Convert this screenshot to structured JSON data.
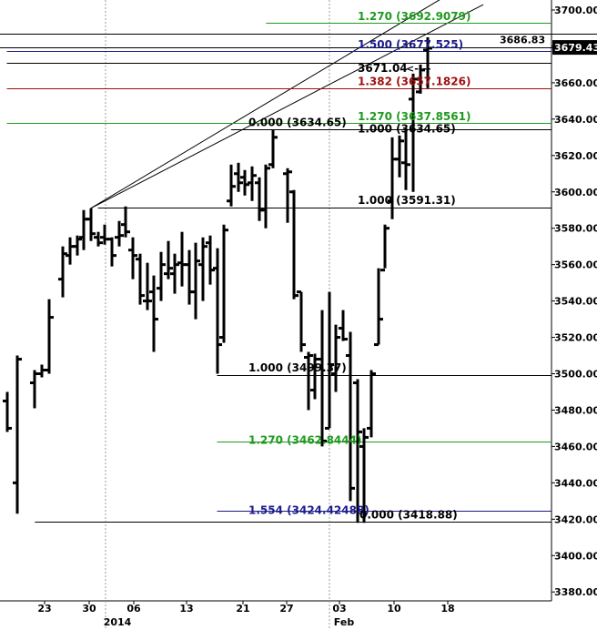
{
  "chart_data": {
    "type": "bar",
    "style": "ohlc",
    "grid": "vertical weekly lines",
    "x_axis": {
      "tick_labels": [
        "23",
        "30",
        "06",
        "13",
        "21",
        "27",
        "03",
        "10",
        "18"
      ],
      "period_labels": [
        "2014",
        "Feb"
      ]
    },
    "y_axis": {
      "position": "right",
      "ylim": [
        3370,
        3715
      ],
      "tick_values": [
        3380,
        3400,
        3420,
        3440,
        3460,
        3480,
        3500,
        3520,
        3540,
        3560,
        3580,
        3600,
        3620,
        3640,
        3660,
        3680,
        3700
      ],
      "tick_labels": [
        "3380.00",
        "3400.00",
        "3420.00",
        "3440.00",
        "3460.00",
        "3480.00",
        "3500.00",
        "3520.00",
        "3540.00",
        "3560.00",
        "3580.00",
        "3600.00",
        "3620.00",
        "3640.00",
        "3660.00",
        "3680.00",
        "3700.00"
      ],
      "last_price_tag": "3679.43",
      "channel_tag": "3686.83"
    },
    "bars": [
      {
        "x": 0,
        "o": 3485,
        "h": 3490,
        "l": 3468,
        "c": 3470
      },
      {
        "x": 1.5,
        "o": 3440,
        "h": 3510,
        "l": 3423,
        "c": 3508
      },
      {
        "x": 4,
        "o": 3495,
        "h": 3502,
        "l": 3481,
        "c": 3500
      },
      {
        "x": 5,
        "o": 3500,
        "h": 3505,
        "l": 3498,
        "c": 3502
      },
      {
        "x": 6,
        "o": 3502,
        "h": 3541,
        "l": 3500,
        "c": 3531
      },
      {
        "x": 8,
        "o": 3552,
        "h": 3570,
        "l": 3542,
        "c": 3566
      },
      {
        "x": 9,
        "o": 3565,
        "h": 3575,
        "l": 3560,
        "c": 3570
      },
      {
        "x": 10,
        "o": 3570,
        "h": 3576,
        "l": 3565,
        "c": 3574
      },
      {
        "x": 11,
        "o": 3575,
        "h": 3590,
        "l": 3568,
        "c": 3585
      },
      {
        "x": 12,
        "o": 3585,
        "h": 3591,
        "l": 3573,
        "c": 3577
      },
      {
        "x": 13,
        "o": 3575,
        "h": 3578,
        "l": 3570,
        "c": 3572
      },
      {
        "x": 14,
        "o": 3575,
        "h": 3582,
        "l": 3571,
        "c": 3574
      },
      {
        "x": 15,
        "o": 3574,
        "h": 3575,
        "l": 3559,
        "c": 3565
      },
      {
        "x": 16,
        "o": 3575,
        "h": 3584,
        "l": 3570,
        "c": 3576
      },
      {
        "x": 17,
        "o": 3582,
        "h": 3592,
        "l": 3575,
        "c": 3578
      },
      {
        "x": 18,
        "o": 3568,
        "h": 3575,
        "l": 3552,
        "c": 3565
      },
      {
        "x": 19,
        "o": 3563,
        "h": 3566,
        "l": 3538,
        "c": 3543
      },
      {
        "x": 20,
        "o": 3540,
        "h": 3561,
        "l": 3535,
        "c": 3540
      },
      {
        "x": 21,
        "o": 3545,
        "h": 3554,
        "l": 3512,
        "c": 3530
      },
      {
        "x": 22,
        "o": 3547,
        "h": 3567,
        "l": 3540,
        "c": 3560
      },
      {
        "x": 23,
        "o": 3555,
        "h": 3573,
        "l": 3552,
        "c": 3558
      },
      {
        "x": 24,
        "o": 3555,
        "h": 3566,
        "l": 3544,
        "c": 3560
      },
      {
        "x": 25,
        "o": 3561,
        "h": 3578,
        "l": 3548,
        "c": 3560
      },
      {
        "x": 26,
        "o": 3560,
        "h": 3568,
        "l": 3538,
        "c": 3545
      },
      {
        "x": 27,
        "o": 3545,
        "h": 3572,
        "l": 3530,
        "c": 3562
      },
      {
        "x": 28,
        "o": 3560,
        "h": 3575,
        "l": 3540,
        "c": 3570
      },
      {
        "x": 29,
        "o": 3572,
        "h": 3576,
        "l": 3549,
        "c": 3557
      },
      {
        "x": 30,
        "o": 3558,
        "h": 3569,
        "l": 3500,
        "c": 3516
      },
      {
        "x": 31,
        "o": 3520,
        "h": 3582,
        "l": 3517,
        "c": 3579
      },
      {
        "x": 32,
        "o": 3595,
        "h": 3615,
        "l": 3592,
        "c": 3603
      },
      {
        "x": 33,
        "o": 3610,
        "h": 3616,
        "l": 3600,
        "c": 3605
      },
      {
        "x": 34,
        "o": 3608,
        "h": 3612,
        "l": 3598,
        "c": 3604
      },
      {
        "x": 35,
        "o": 3605,
        "h": 3614,
        "l": 3595,
        "c": 3609
      },
      {
        "x": 36,
        "o": 3605,
        "h": 3608,
        "l": 3584,
        "c": 3590
      },
      {
        "x": 37,
        "o": 3590,
        "h": 3615,
        "l": 3580,
        "c": 3613
      },
      {
        "x": 38,
        "o": 3615,
        "h": 3634,
        "l": 3613,
        "c": 3630
      },
      {
        "x": 40,
        "o": 3610,
        "h": 3613,
        "l": 3583,
        "c": 3611
      },
      {
        "x": 41,
        "o": 3600,
        "h": 3601,
        "l": 3541,
        "c": 3543
      },
      {
        "x": 42,
        "o": 3545,
        "h": 3545,
        "l": 3512,
        "c": 3516
      },
      {
        "x": 43,
        "o": 3509,
        "h": 3512,
        "l": 3480,
        "c": 3510
      },
      {
        "x": 44,
        "o": 3491,
        "h": 3511,
        "l": 3486,
        "c": 3508
      },
      {
        "x": 45,
        "o": 3508,
        "h": 3535,
        "l": 3460,
        "c": 3463
      },
      {
        "x": 46,
        "o": 3470,
        "h": 3545,
        "l": 3470,
        "c": 3505
      },
      {
        "x": 47,
        "o": 3500,
        "h": 3527,
        "l": 3490,
        "c": 3520
      },
      {
        "x": 48,
        "o": 3525,
        "h": 3535,
        "l": 3518,
        "c": 3519
      },
      {
        "x": 49,
        "o": 3510,
        "h": 3523,
        "l": 3430,
        "c": 3437
      },
      {
        "x": 50,
        "o": 3495,
        "h": 3497,
        "l": 3418,
        "c": 3468
      },
      {
        "x": 51,
        "o": 3460,
        "h": 3470,
        "l": 3418,
        "c": 3465
      },
      {
        "x": 52,
        "o": 3470,
        "h": 3502,
        "l": 3465,
        "c": 3500
      },
      {
        "x": 53,
        "o": 3516,
        "h": 3558,
        "l": 3516,
        "c": 3530
      },
      {
        "x": 54,
        "o": 3557,
        "h": 3582,
        "l": 3558,
        "c": 3580
      },
      {
        "x": 55,
        "o": 3595,
        "h": 3630,
        "l": 3585,
        "c": 3618
      },
      {
        "x": 56,
        "o": 3618,
        "h": 3631,
        "l": 3608,
        "c": 3628
      },
      {
        "x": 57,
        "o": 3616,
        "h": 3635,
        "l": 3601,
        "c": 3615
      },
      {
        "x": 58,
        "o": 3651,
        "h": 3665,
        "l": 3600,
        "c": 3662
      },
      {
        "x": 59,
        "o": 3655,
        "h": 3670,
        "l": 3654,
        "c": 3667
      },
      {
        "x": 60,
        "o": 3678,
        "h": 3685,
        "l": 3657,
        "c": 3679
      }
    ],
    "horizontal_levels": [
      {
        "name": "fib-1270-top",
        "value": 3692.9079,
        "color": "#1f9a1f",
        "label": "1.270 (3692.9079)",
        "from": 37
      },
      {
        "name": "fib-1500",
        "value": 3677.525,
        "color": "#1a1a8c",
        "label": "1.500 (3677.525)",
        "from": 0
      },
      {
        "name": "level-3671",
        "value": 3671.04,
        "color": "#000000",
        "label": "3671.04",
        "from": 0
      },
      {
        "name": "fib-1382",
        "value": 3657.1826,
        "color": "#a01010",
        "label": "1.382 (3657.1826)",
        "from": 0
      },
      {
        "name": "fib-1270-mid",
        "value": 3637.8561,
        "color": "#1f9a1f",
        "label": "1.270 (3637.8561)",
        "from": 0
      },
      {
        "name": "fib-1000-upper",
        "value": 3634.65,
        "color": "#000000",
        "label": "1.000 (3634.65)",
        "from": 37
      },
      {
        "name": "fib-0000-upper",
        "value": 3634.65,
        "color": "#000000",
        "label": "0.000 (3634.65)",
        "from": 32
      },
      {
        "name": "fib-1000-3591",
        "value": 3591.31,
        "color": "#000000",
        "label": "1.000 (3591.31)",
        "from": 13
      },
      {
        "name": "fib-1000-3499",
        "value": 3499.37,
        "color": "#000000",
        "label": "1.000 (3499.37)",
        "from": 30
      },
      {
        "name": "fib-1270-low",
        "value": 3462.84,
        "color": "#1f9a1f",
        "label": "1.270 (3462.8444)",
        "from": 30
      },
      {
        "name": "fib-1554",
        "value": 3424.42488,
        "color": "#1a1a8c",
        "label": "1.554 (3424.42488)",
        "from": 30
      },
      {
        "name": "fib-0000-low",
        "value": 3418.88,
        "color": "#000000",
        "label": "0.000 (3418.88)",
        "from": 4
      }
    ],
    "arrow_label": "<----",
    "channel_lines": [
      {
        "from": {
          "x": 12,
          "y": 3591
        },
        "to": {
          "x": 68,
          "y": 3720
        }
      },
      {
        "from": {
          "x": 12,
          "y": 3591
        },
        "to": {
          "x": 68,
          "y": 3703
        }
      }
    ]
  }
}
